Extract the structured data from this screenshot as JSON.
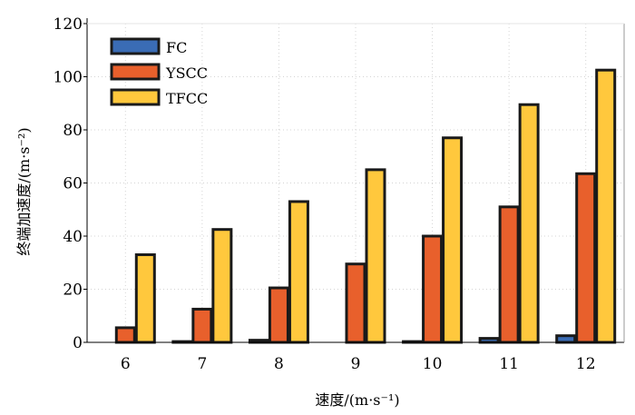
{
  "chart_data": {
    "type": "bar",
    "categories": [
      "6",
      "7",
      "8",
      "9",
      "10",
      "11",
      "12"
    ],
    "series": [
      {
        "name": "FC",
        "color": "#3a6cb5",
        "values": [
          0,
          0.3,
          0.8,
          0,
          0.3,
          1.5,
          2.5
        ]
      },
      {
        "name": "YSCC",
        "color": "#e8602c",
        "values": [
          5.5,
          12.5,
          20.5,
          29.5,
          40,
          51,
          63.5
        ]
      },
      {
        "name": "TFCC",
        "color": "#ffc83d",
        "values": [
          33,
          42.5,
          53,
          65,
          77,
          89.5,
          102.5
        ]
      }
    ],
    "xlabel": "速度/(m·s⁻¹)",
    "ylabel": "终端加速度/(m·s⁻²)",
    "ylim": [
      0,
      120
    ],
    "yticks": [
      0,
      20,
      40,
      60,
      80,
      100,
      120
    ],
    "grid": true,
    "legend_position": "top-left"
  }
}
